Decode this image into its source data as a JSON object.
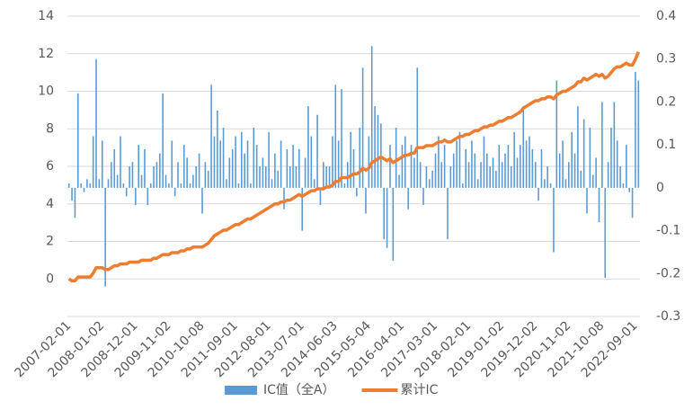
{
  "chart_data": {
    "type": "bar-line",
    "categories": [
      "2007-02-01",
      null,
      null,
      null,
      null,
      null,
      null,
      null,
      null,
      null,
      null,
      "2008-01-02",
      null,
      null,
      null,
      null,
      null,
      null,
      null,
      null,
      null,
      null,
      "2008-12-01",
      null,
      null,
      null,
      null,
      null,
      null,
      null,
      null,
      null,
      null,
      "2009-11-02",
      null,
      null,
      null,
      null,
      null,
      null,
      null,
      null,
      null,
      null,
      "2010-10-08",
      null,
      null,
      null,
      null,
      null,
      null,
      null,
      null,
      null,
      null,
      "2011-09-01",
      null,
      null,
      null,
      null,
      null,
      null,
      null,
      null,
      null,
      null,
      "2012-08-01",
      null,
      null,
      null,
      null,
      null,
      null,
      null,
      null,
      null,
      null,
      "2013-07-01",
      null,
      null,
      null,
      null,
      null,
      null,
      null,
      null,
      null,
      null,
      "2014-06-03",
      null,
      null,
      null,
      null,
      null,
      null,
      null,
      null,
      null,
      null,
      "2015-05-04",
      null,
      null,
      null,
      null,
      null,
      null,
      null,
      null,
      null,
      null,
      "2016-04-01",
      null,
      null,
      null,
      null,
      null,
      null,
      null,
      null,
      null,
      null,
      "2017-03-01",
      null,
      null,
      null,
      null,
      null,
      null,
      null,
      null,
      null,
      null,
      "2018-02-01",
      null,
      null,
      null,
      null,
      null,
      null,
      null,
      null,
      null,
      null,
      "2019-01-02",
      null,
      null,
      null,
      null,
      null,
      null,
      null,
      null,
      null,
      null,
      "2019-12-02",
      null,
      null,
      null,
      null,
      null,
      null,
      null,
      null,
      null,
      null,
      "2020-11-02",
      null,
      null,
      null,
      null,
      null,
      null,
      null,
      null,
      null,
      null,
      "2021-10-08",
      null,
      null,
      null,
      null,
      null,
      null,
      null,
      null,
      null,
      null,
      "2022-09-01",
      null
    ],
    "series": [
      {
        "name": "IC值（全A）",
        "kind": "bar",
        "axis": "y2",
        "color": "#5b9bd5",
        "values": [
          0.01,
          -0.03,
          -0.07,
          0.22,
          0.01,
          -0.01,
          0.02,
          0.01,
          0.12,
          0.3,
          0.02,
          0.11,
          -0.23,
          0.02,
          0.06,
          0.09,
          0.03,
          0.12,
          0.01,
          -0.02,
          0.05,
          0.06,
          -0.04,
          0.1,
          0.03,
          0.09,
          -0.04,
          0.01,
          0.05,
          0.06,
          0.08,
          0.22,
          0.03,
          0.01,
          0.11,
          -0.02,
          0.06,
          0.01,
          0.1,
          0.07,
          0.01,
          0.03,
          0.05,
          0.08,
          -0.06,
          0.06,
          0.04,
          0.24,
          0.12,
          0.18,
          0.11,
          0.14,
          0.02,
          0.07,
          0.09,
          0.12,
          0.01,
          0.13,
          0.08,
          0.11,
          0.01,
          0.14,
          0.1,
          0.05,
          0.07,
          0.05,
          0.13,
          0.02,
          0.08,
          0.04,
          0.11,
          -0.05,
          0.09,
          0.05,
          0.1,
          0.05,
          0.09,
          -0.1,
          0.07,
          0.19,
          0.12,
          0.02,
          0.17,
          -0.04,
          0.06,
          0.05,
          0.05,
          0.12,
          0.24,
          0.11,
          0.23,
          0.01,
          0.06,
          0.13,
          0.09,
          -0.02,
          0.14,
          0.28,
          -0.06,
          0.12,
          0.33,
          0.19,
          0.17,
          0.15,
          -0.12,
          -0.14,
          0.1,
          -0.17,
          0.14,
          0.03,
          0.1,
          0.12,
          -0.05,
          0.1,
          0.07,
          0.28,
          0.06,
          -0.04,
          0.05,
          0.02,
          0.04,
          0.08,
          0.12,
          0.06,
          0.1,
          -0.12,
          0.05,
          0.08,
          0.11,
          0.13,
          0.01,
          0.09,
          0.06,
          0.11,
          0.08,
          0.02,
          0.06,
          0.12,
          0.08,
          0.05,
          0.07,
          0.04,
          0.1,
          0.06,
          0.08,
          0.1,
          0.05,
          0.13,
          0.07,
          0.1,
          0.19,
          0.11,
          0.12,
          0.09,
          0.06,
          -0.03,
          0.09,
          0.02,
          0.05,
          0.01,
          -0.15,
          0.25,
          0.08,
          0.11,
          0.02,
          0.06,
          0.13,
          0.08,
          0.19,
          0.04,
          0.16,
          -0.06,
          0.14,
          0.03,
          0.07,
          -0.08,
          0.2,
          -0.21,
          0.06,
          0.14,
          0.2,
          0.11,
          0.05,
          0.01,
          0.1,
          -0.01,
          -0.07,
          0.27,
          0.25
        ]
      },
      {
        "name": "累计IC",
        "kind": "line",
        "axis": "y",
        "color": "#ed7d31",
        "values": [
          0.0,
          -0.1,
          -0.1,
          0.1,
          0.1,
          0.1,
          0.1,
          0.1,
          0.3,
          0.6,
          0.6,
          0.6,
          0.5,
          0.5,
          0.6,
          0.7,
          0.7,
          0.8,
          0.8,
          0.8,
          0.9,
          0.9,
          0.9,
          0.9,
          1.0,
          1.0,
          1.0,
          1.0,
          1.1,
          1.1,
          1.2,
          1.3,
          1.3,
          1.3,
          1.4,
          1.4,
          1.4,
          1.5,
          1.5,
          1.6,
          1.6,
          1.7,
          1.7,
          1.7,
          1.7,
          1.8,
          1.9,
          2.1,
          2.3,
          2.4,
          2.5,
          2.6,
          2.6,
          2.7,
          2.8,
          2.9,
          2.9,
          3.0,
          3.1,
          3.2,
          3.2,
          3.3,
          3.4,
          3.5,
          3.6,
          3.7,
          3.8,
          3.9,
          4.0,
          4.0,
          4.1,
          4.1,
          4.2,
          4.2,
          4.3,
          4.4,
          4.5,
          4.4,
          4.5,
          4.6,
          4.7,
          4.7,
          4.8,
          4.8,
          4.8,
          4.9,
          4.9,
          5.0,
          5.2,
          5.2,
          5.4,
          5.4,
          5.4,
          5.5,
          5.6,
          5.6,
          5.7,
          5.9,
          5.8,
          5.9,
          6.2,
          6.3,
          6.4,
          6.5,
          6.4,
          6.3,
          6.4,
          6.2,
          6.3,
          6.4,
          6.5,
          6.6,
          6.6,
          6.7,
          6.7,
          7.0,
          7.0,
          7.0,
          7.1,
          7.1,
          7.1,
          7.2,
          7.3,
          7.3,
          7.4,
          7.3,
          7.3,
          7.4,
          7.5,
          7.6,
          7.6,
          7.7,
          7.7,
          7.8,
          7.9,
          7.9,
          8.0,
          8.1,
          8.1,
          8.2,
          8.2,
          8.3,
          8.4,
          8.4,
          8.5,
          8.6,
          8.6,
          8.7,
          8.8,
          8.9,
          9.1,
          9.2,
          9.3,
          9.4,
          9.5,
          9.5,
          9.6,
          9.6,
          9.7,
          9.7,
          9.6,
          9.8,
          9.9,
          10.0,
          10.0,
          10.1,
          10.2,
          10.3,
          10.5,
          10.5,
          10.7,
          10.6,
          10.7,
          10.8,
          10.9,
          10.8,
          10.9,
          10.7,
          10.8,
          11.0,
          11.2,
          11.3,
          11.3,
          11.4,
          11.5,
          11.4,
          11.4,
          11.7,
          12.1
        ]
      }
    ],
    "ylim": [
      -2,
      14
    ],
    "yticks": [
      0,
      2,
      4,
      6,
      8,
      10,
      12,
      14
    ],
    "y2lim": [
      -0.3,
      0.4
    ],
    "y2ticks": [
      0.4,
      0.3,
      0.2,
      0.1,
      0,
      -0.1,
      -0.2,
      -0.3
    ],
    "grid": true,
    "legend": "bottom"
  }
}
